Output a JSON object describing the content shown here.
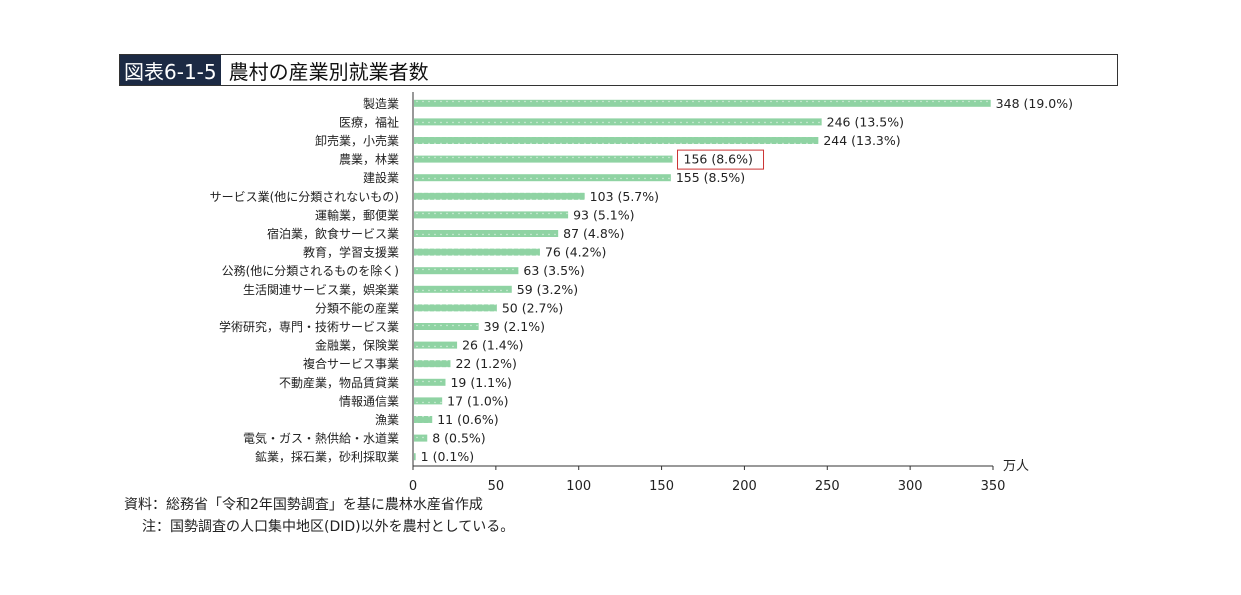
{
  "header": {
    "figure_label": "図表6-1-5",
    "title": "農村の産業別就業者数"
  },
  "notes": {
    "source": "資料：総務省「令和2年国勢調査」を基に農林水産省作成",
    "note": "注：国勢調査の人口集中地区(DID)以外を農村としている。"
  },
  "chart_data": {
    "type": "bar",
    "orientation": "horizontal",
    "title": "農村の産業別就業者数",
    "unit": "万人",
    "xlim": [
      0,
      350
    ],
    "x_ticks": [
      0,
      50,
      100,
      150,
      200,
      250,
      300,
      350
    ],
    "bar_color": "#8fd3a3",
    "highlight_color": "#cc3333",
    "highlight_category": "農業，林業",
    "categories": [
      "製造業",
      "医療，福祉",
      "卸売業，小売業",
      "農業，林業",
      "建設業",
      "サービス業(他に分類されないもの)",
      "運輸業，郵便業",
      "宿泊業，飲食サービス業",
      "教育，学習支援業",
      "公務(他に分類されるものを除く)",
      "生活関連サービス業，娯楽業",
      "分類不能の産業",
      "学術研究，専門・技術サービス業",
      "金融業，保険業",
      "複合サービス事業",
      "不動産業，物品賃貸業",
      "情報通信業",
      "漁業",
      "電気・ガス・熱供給・水道業",
      "鉱業，採石業，砂利採取業"
    ],
    "values": [
      348,
      246,
      244,
      156,
      155,
      103,
      93,
      87,
      76,
      63,
      59,
      50,
      39,
      26,
      22,
      19,
      17,
      11,
      8,
      1
    ],
    "labels": [
      "348 (19.0%)",
      "246 (13.5%)",
      "244 (13.3%)",
      "156 (8.6%)",
      "155 (8.5%)",
      "103 (5.7%)",
      "93 (5.1%)",
      "87 (4.8%)",
      "76 (4.2%)",
      "63 (3.5%)",
      "59 (3.2%)",
      "50 (2.7%)",
      "39 (2.1%)",
      "26 (1.4%)",
      "22 (1.2%)",
      "19 (1.1%)",
      "17 (1.0%)",
      "11 (0.6%)",
      "8 (0.5%)",
      "1 (0.1%)"
    ]
  }
}
